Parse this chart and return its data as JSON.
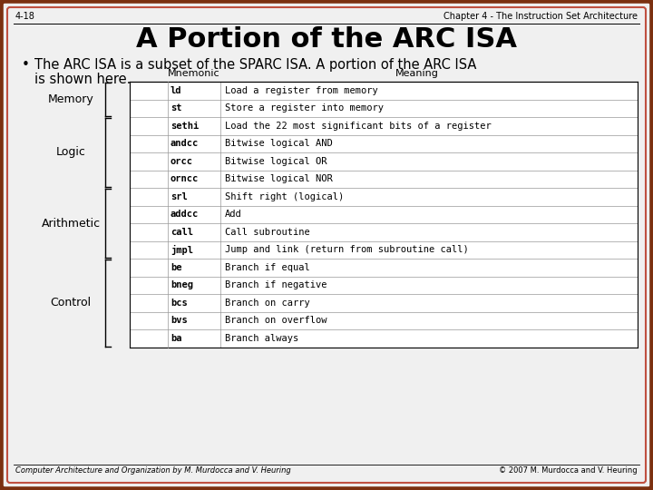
{
  "slide_title": "A Portion of the ARC ISA",
  "header_left": "4-18",
  "header_right": "Chapter 4 - The Instruction Set Architecture",
  "bullet_text1": "The ARC ISA is a subset of the SPARC ISA. A portion of the ARC ISA",
  "bullet_text2": "is shown here.",
  "col_mnemonic": "Mnemonic",
  "col_meaning": "Meaning",
  "rows": [
    {
      "cat": "Memory",
      "mnemonic": "ld",
      "meaning": "Load a register from memory"
    },
    {
      "cat": "Memory",
      "mnemonic": "st",
      "meaning": "Store a register into memory"
    },
    {
      "cat": "Logic",
      "mnemonic": "sethi",
      "meaning": "Load the 22 most significant bits of a register"
    },
    {
      "cat": "Logic",
      "mnemonic": "andcc",
      "meaning": "Bitwise logical AND"
    },
    {
      "cat": "Logic",
      "mnemonic": "orcc",
      "meaning": "Bitwise logical OR"
    },
    {
      "cat": "Logic",
      "mnemonic": "orncc",
      "meaning": "Bitwise logical NOR"
    },
    {
      "cat": "Arithmetic",
      "mnemonic": "srl",
      "meaning": "Shift right (logical)"
    },
    {
      "cat": "Arithmetic",
      "mnemonic": "addcc",
      "meaning": "Add"
    },
    {
      "cat": "Arithmetic",
      "mnemonic": "call",
      "meaning": "Call subroutine"
    },
    {
      "cat": "Arithmetic",
      "mnemonic": "jmpl",
      "meaning": "Jump and link (return from subroutine call)"
    },
    {
      "cat": "Control",
      "mnemonic": "be",
      "meaning": "Branch if equal"
    },
    {
      "cat": "Control",
      "mnemonic": "bneg",
      "meaning": "Branch if negative"
    },
    {
      "cat": "Control",
      "mnemonic": "bcs",
      "meaning": "Branch on carry"
    },
    {
      "cat": "Control",
      "mnemonic": "bvs",
      "meaning": "Branch on overflow"
    },
    {
      "cat": "Control",
      "mnemonic": "ba",
      "meaning": "Branch always"
    }
  ],
  "footer_left": "Computer Architecture and Organization by M. Murdocca and V. Heuring",
  "footer_right": "© 2007 M. Murdocca and V. Heuring",
  "bg_color": "#f0f0f0",
  "border_color_outer": "#7B3010",
  "border_color_inner": "#c05040",
  "table_line_color": "#999999",
  "header_font_size": 7,
  "title_font_size": 22,
  "bullet_font_size": 10.5,
  "table_mnem_font_size": 7.5,
  "table_mean_font_size": 7.5,
  "col_header_font_size": 8,
  "cat_font_size": 9,
  "footer_font_size": 6
}
